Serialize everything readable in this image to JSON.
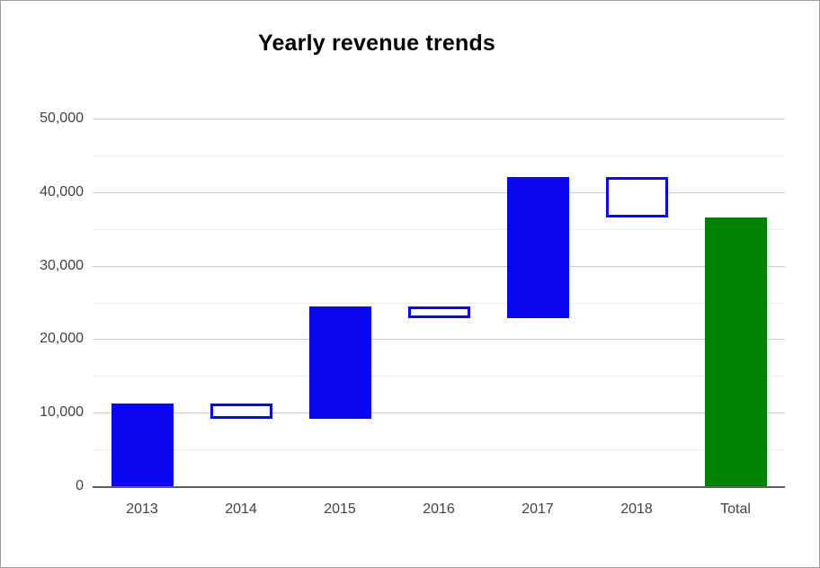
{
  "title": "Yearly revenue trends",
  "chart_data": {
    "type": "bar",
    "subtype": "waterfall",
    "title": "Yearly revenue trends",
    "xlabel": "",
    "ylabel": "",
    "categories": [
      "2013",
      "2014",
      "2015",
      "2016",
      "2017",
      "2018",
      "Total"
    ],
    "series": [
      {
        "label": "2013",
        "start": 0,
        "end": 11300,
        "delta": 11300,
        "kind": "increase"
      },
      {
        "label": "2014",
        "start": 11300,
        "end": 9200,
        "delta": -2100,
        "kind": "decrease"
      },
      {
        "label": "2015",
        "start": 9200,
        "end": 24500,
        "delta": 15300,
        "kind": "increase"
      },
      {
        "label": "2016",
        "start": 24500,
        "end": 22900,
        "delta": -1600,
        "kind": "decrease"
      },
      {
        "label": "2017",
        "start": 22900,
        "end": 42100,
        "delta": 19200,
        "kind": "increase"
      },
      {
        "label": "2018",
        "start": 42100,
        "end": 36500,
        "delta": -5600,
        "kind": "decrease"
      },
      {
        "label": "Total",
        "start": 0,
        "end": 36500,
        "delta": 36500,
        "kind": "total"
      }
    ],
    "ylim": [
      0,
      50000
    ],
    "y_major_ticks": [
      0,
      10000,
      20000,
      30000,
      40000,
      50000
    ],
    "y_tick_labels": [
      "0",
      "10,000",
      "20,000",
      "30,000",
      "40,000",
      "50,000"
    ],
    "y_minor_ticks": [
      5000,
      15000,
      25000,
      35000,
      45000
    ],
    "grid": true,
    "legend": "none",
    "colors": {
      "increase_fill": "#0b06f0",
      "decrease_fill": "#ffffff",
      "decrease_border": "#0b06f0",
      "total_fill": "#008000",
      "gridline_major": "#c9c9c9",
      "gridline_minor": "#ededed",
      "axis_line": "#5f5f5f",
      "tick_text": "#424242",
      "title_text": "#000000",
      "canvas_border": "#9e9e9e"
    }
  }
}
